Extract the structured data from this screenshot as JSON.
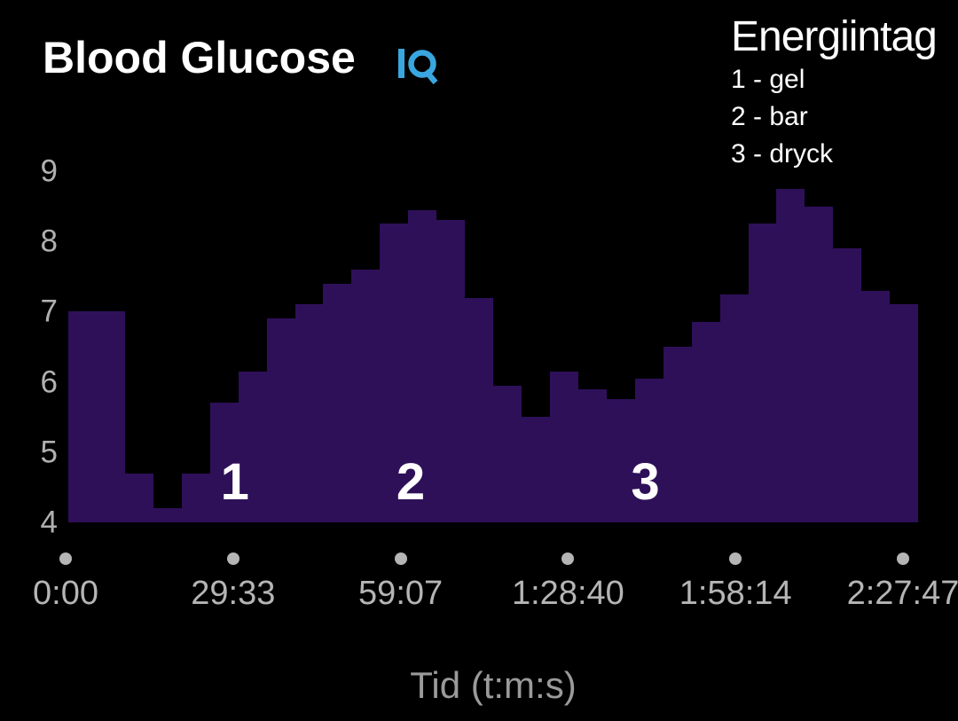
{
  "header": {
    "title": "Blood Glucose",
    "iq_badge": "IQ",
    "iq_color": "#3aa6e0"
  },
  "legend": {
    "title": "Energiintag",
    "items": [
      "1 - gel",
      "2 - bar",
      "3 - dryck"
    ]
  },
  "chart_data": {
    "type": "bar",
    "title": "Blood Glucose",
    "xlabel": "Tid (t:m:s)",
    "ylabel": "",
    "ylim": [
      4,
      9
    ],
    "y_ticks": [
      9,
      8,
      7,
      6,
      5,
      4
    ],
    "x_tick_labels": [
      "0:00",
      "29:33",
      "59:07",
      "1:28:40",
      "1:58:14",
      "2:27:47"
    ],
    "grid": false,
    "legend_position": "top-right",
    "bar_color": "#2e1059",
    "values": [
      7.0,
      7.0,
      4.7,
      4.2,
      4.7,
      5.7,
      6.15,
      6.9,
      7.1,
      7.4,
      7.6,
      8.25,
      8.45,
      8.3,
      7.2,
      5.95,
      5.5,
      6.15,
      5.9,
      5.75,
      6.05,
      6.5,
      6.85,
      7.25,
      8.25,
      8.75,
      8.5,
      7.9,
      7.3,
      7.1
    ],
    "annotations": [
      {
        "label": "1",
        "x_percent": 19.6
      },
      {
        "label": "2",
        "x_percent": 40.3
      },
      {
        "label": "3",
        "x_percent": 67.9
      }
    ]
  },
  "colors": {
    "background": "#000000",
    "title_text": "#ffffff",
    "bar": "#2e1059",
    "axis_text": "#b5b5b5",
    "muted_text": "#9a9a9a",
    "iq_blue": "#3aa6e0"
  }
}
